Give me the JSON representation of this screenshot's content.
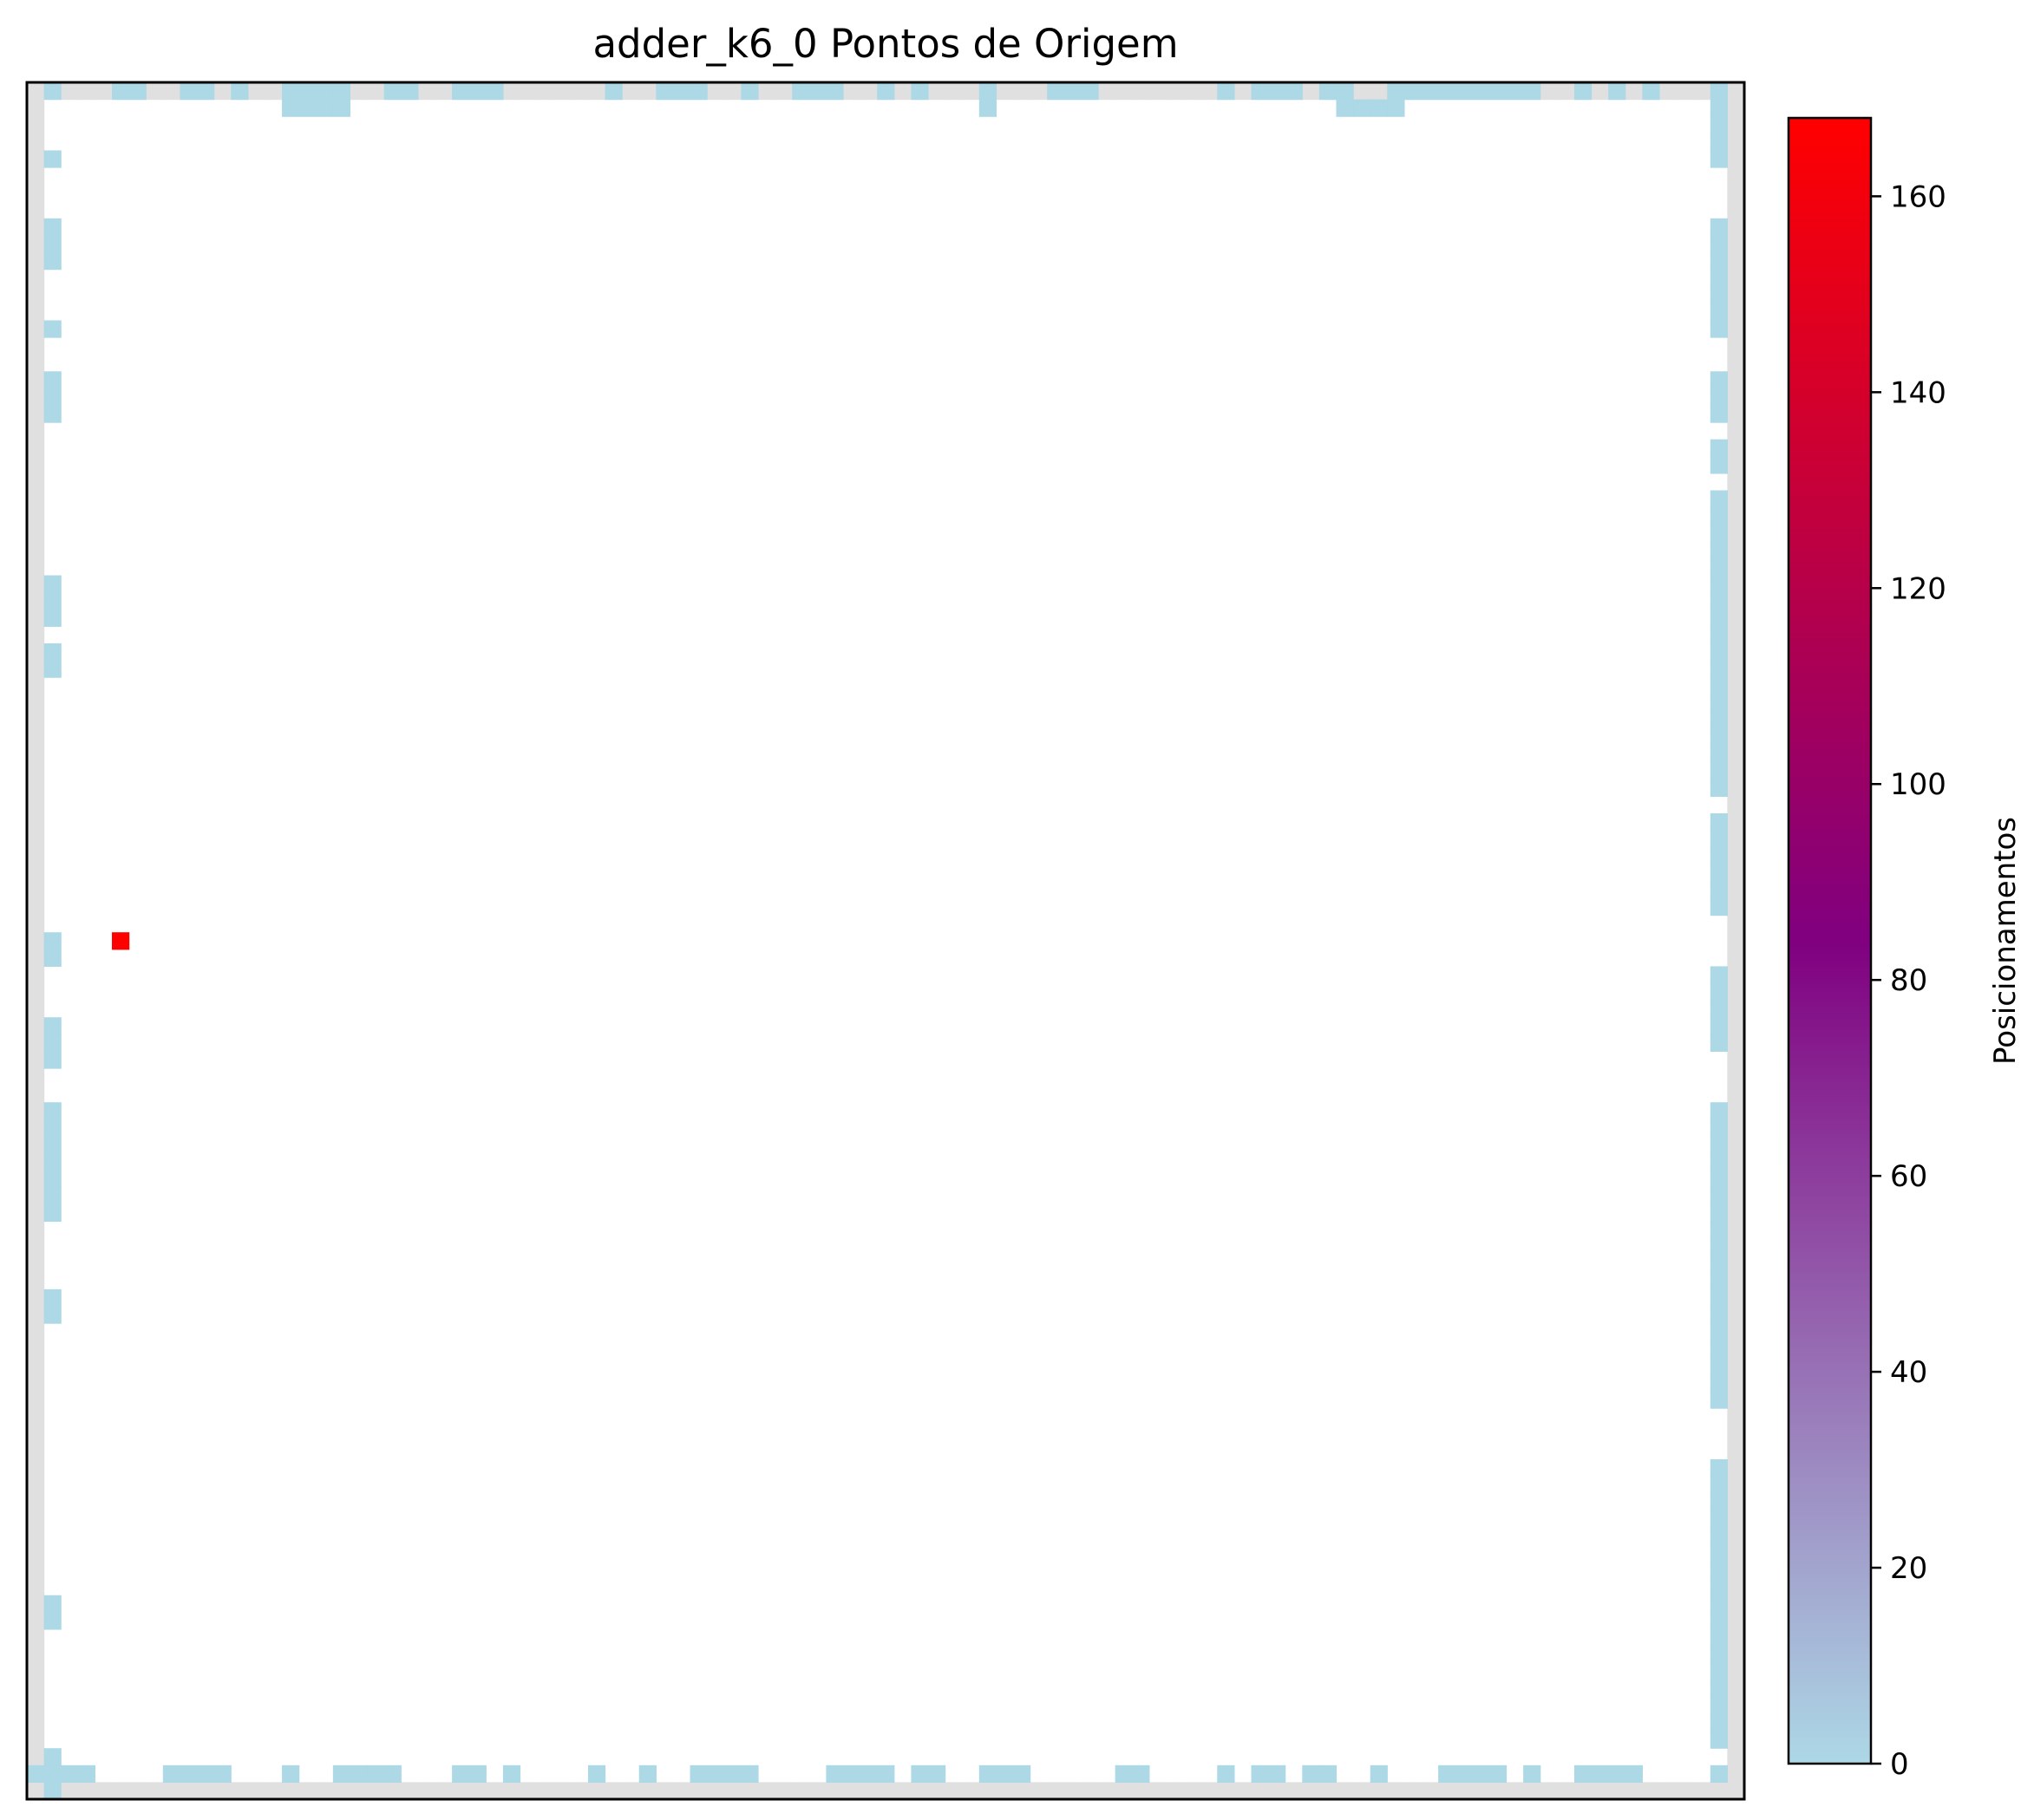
{
  "chart_data": {
    "type": "heatmap",
    "title": "adder_k6_0 Pontos de Origem",
    "xlabel": "",
    "ylabel": "",
    "grid": false,
    "xticks_visible": false,
    "yticks_visible": false,
    "grid_size": {
      "cols": 101,
      "rows": 101
    },
    "colors": {
      "empty": "#ffffff",
      "io_ring": "#e0e0e0",
      "frame": "#000000",
      "colormap": [
        "#add8e6",
        "#800080",
        "#ff0000"
      ]
    },
    "legend": "colorbar-right",
    "colorbar": {
      "label": "Posicionamentos",
      "min": 0,
      "max": 168,
      "ticks": [
        "0",
        "20",
        "40",
        "60",
        "80",
        "100",
        "120",
        "140",
        "160"
      ]
    },
    "cells": [
      {
        "col": 5,
        "row": 50,
        "value": 168
      }
    ],
    "io_low": {
      "top": [
        1,
        5,
        6,
        9,
        10,
        12,
        15,
        16,
        17,
        18,
        21,
        22,
        25,
        26,
        27,
        34,
        37,
        38,
        39,
        42,
        45,
        46,
        47,
        50,
        52,
        56,
        60,
        61,
        62,
        70,
        72,
        73,
        74,
        76,
        77,
        80,
        81,
        82,
        83,
        84,
        85,
        86,
        87,
        88,
        91,
        93,
        95,
        99
      ],
      "top2": [
        15,
        16,
        17,
        18,
        56,
        77,
        78,
        79,
        80
      ],
      "bottom": [
        0,
        1,
        2,
        3,
        8,
        9,
        10,
        11,
        15,
        18,
        19,
        20,
        21,
        25,
        26,
        28,
        33,
        36,
        39,
        40,
        41,
        42,
        47,
        48,
        49,
        50,
        52,
        53,
        56,
        57,
        58,
        64,
        65,
        70,
        72,
        73,
        75,
        76,
        79,
        83,
        84,
        85,
        86,
        88,
        91,
        92,
        93,
        94,
        99
      ],
      "left": [
        4,
        8,
        9,
        10,
        14,
        17,
        18,
        19,
        29,
        30,
        31,
        33,
        34,
        50,
        51,
        55,
        56,
        57,
        60,
        61,
        62,
        63,
        64,
        65,
        66,
        71,
        72,
        89,
        90,
        98,
        99,
        100
      ],
      "right": [
        1,
        2,
        3,
        4,
        8,
        9,
        10,
        11,
        12,
        13,
        14,
        17,
        18,
        19,
        21,
        22,
        24,
        25,
        26,
        27,
        28,
        29,
        30,
        31,
        32,
        33,
        34,
        35,
        36,
        37,
        38,
        39,
        40,
        41,
        43,
        44,
        45,
        46,
        47,
        48,
        52,
        53,
        54,
        55,
        56,
        60,
        61,
        62,
        63,
        64,
        65,
        66,
        67,
        68,
        69,
        70,
        71,
        72,
        73,
        74,
        75,
        76,
        77,
        81,
        82,
        83,
        84,
        85,
        86,
        87,
        88,
        89,
        90,
        91,
        92,
        93,
        94,
        95,
        96,
        97
      ]
    }
  }
}
